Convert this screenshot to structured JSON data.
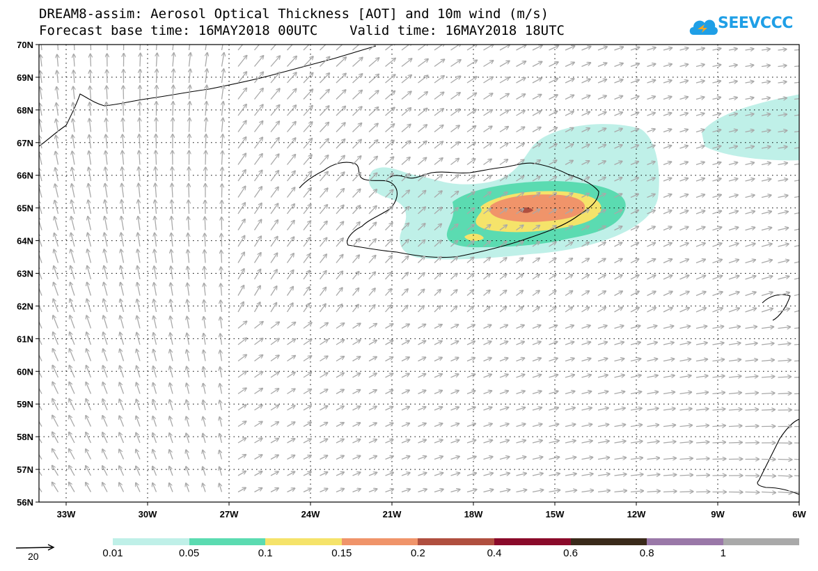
{
  "title": {
    "line1": "DREAM8-assim: Aerosol Optical Thickness [AOT] and 10m wind (m/s)",
    "line2": "Forecast base time: 16MAY2018 00UTC    Valid time: 16MAY2018 18UTC"
  },
  "logo": {
    "text": "SEEVCCC",
    "color": "#1f9fe6"
  },
  "map": {
    "lon_range": [
      -34.0,
      -6.0
    ],
    "lat_range": [
      56.0,
      70.0
    ],
    "lon_ticks": [
      "33W",
      "30W",
      "27W",
      "24W",
      "21W",
      "18W",
      "15W",
      "12W",
      "9W",
      "6W"
    ],
    "lat_ticks": [
      "70N",
      "69N",
      "68N",
      "67N",
      "66N",
      "65N",
      "64N",
      "63N",
      "62N",
      "61N",
      "60N",
      "59N",
      "58N",
      "57N",
      "56N"
    ],
    "grid": "dotted",
    "arrow_color": "#a9a9a9"
  },
  "legend": {
    "reference_vector": "20",
    "boundaries": [
      "0.01",
      "0.05",
      "0.1",
      "0.15",
      "0.2",
      "0.4",
      "0.6",
      "0.8",
      "1"
    ],
    "colors": [
      "#bff0e8",
      "#5bdbb1",
      "#f5e36a",
      "#f0946a",
      "#b04f3f",
      "#8a0a2a",
      "#3a2a1a",
      "#9a78a8",
      "#a9a9a9"
    ]
  }
}
